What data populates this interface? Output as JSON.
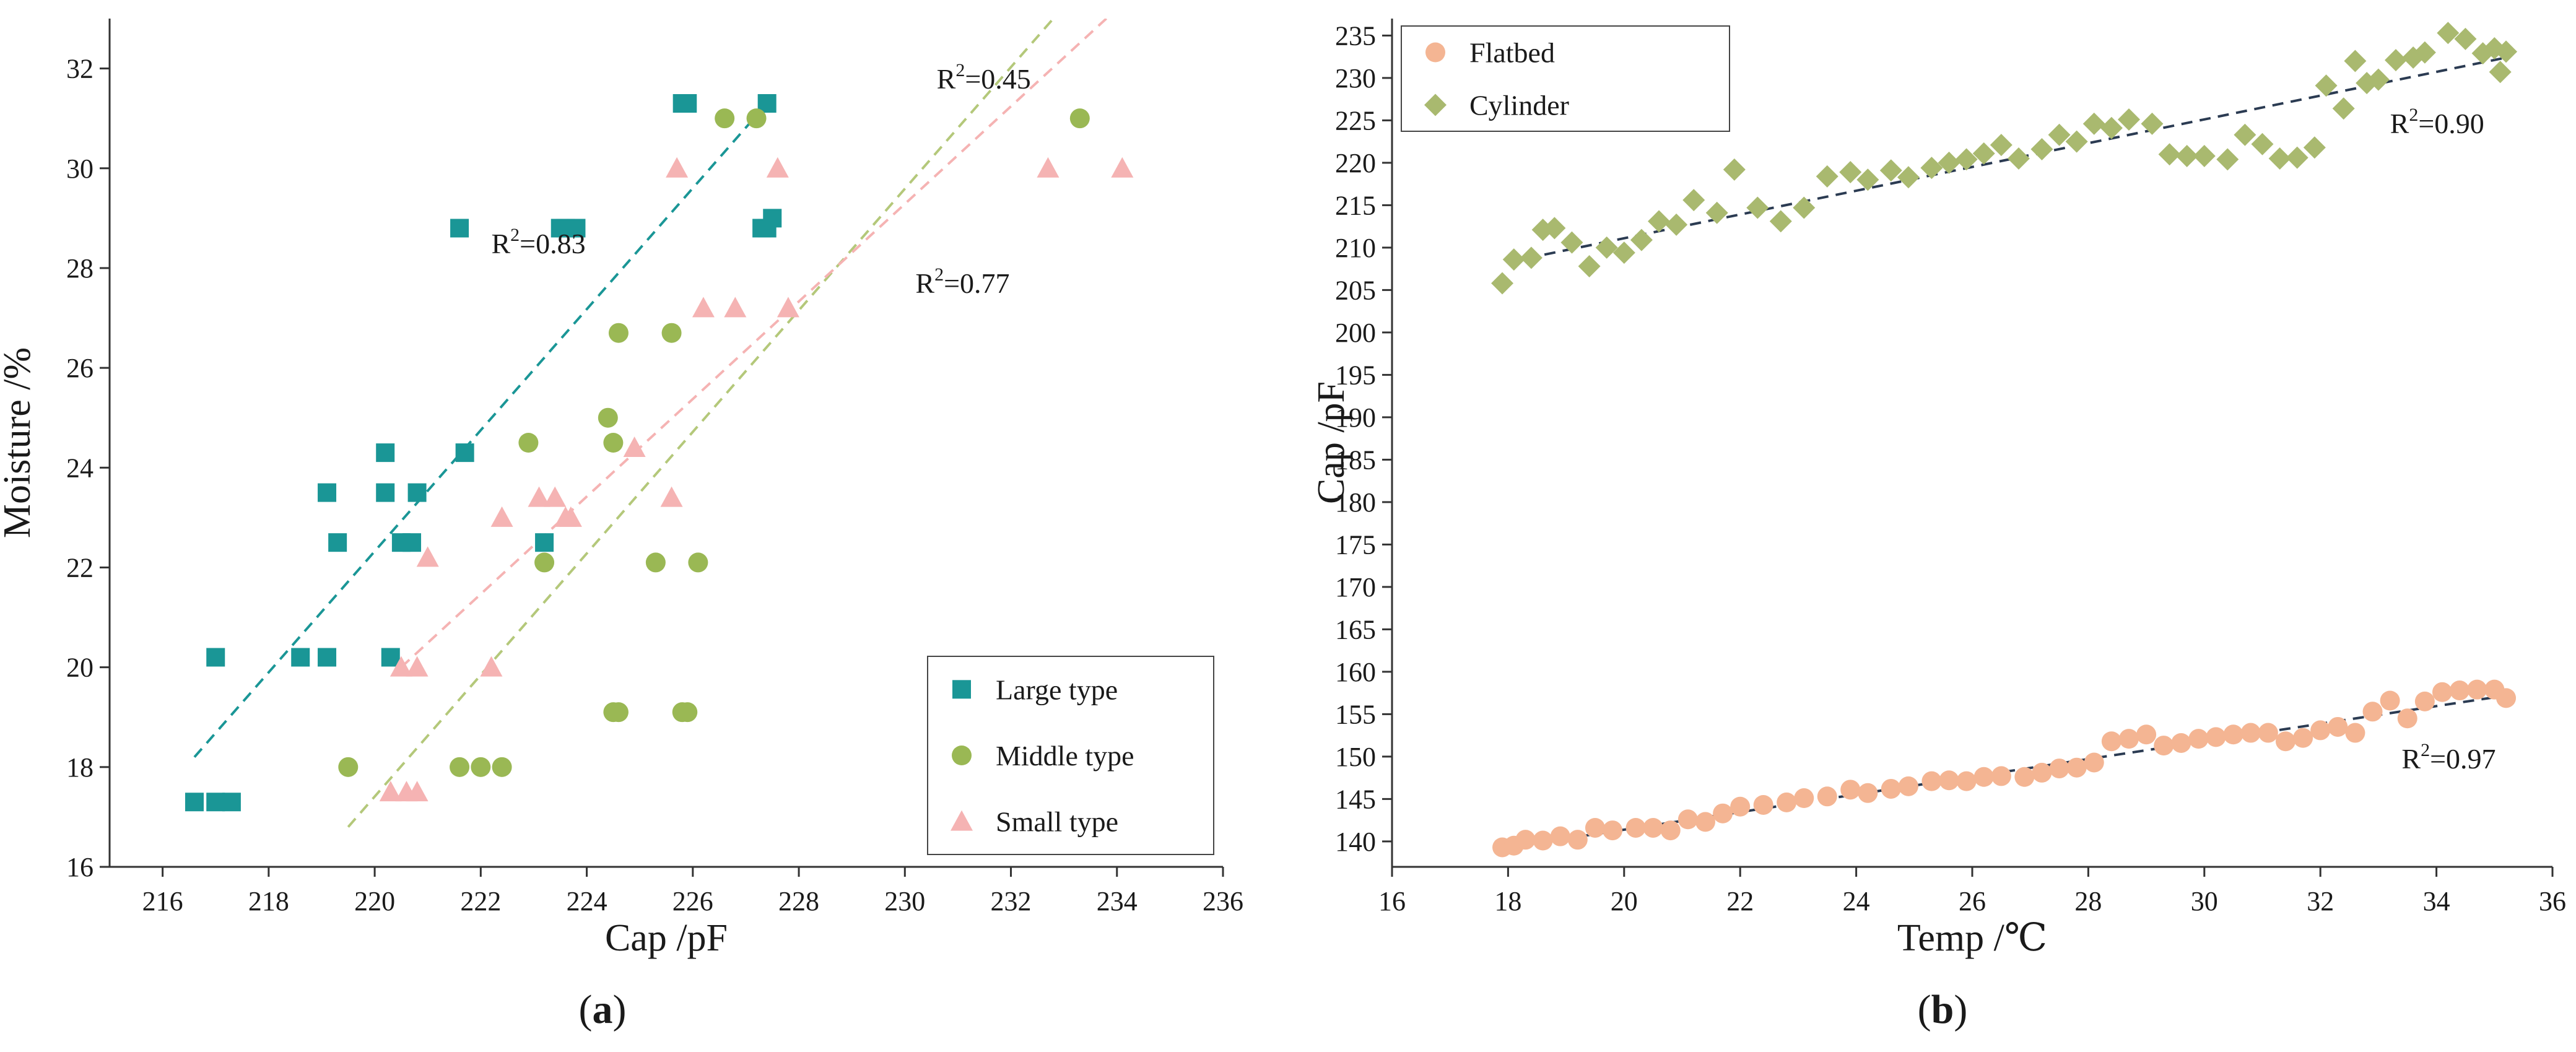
{
  "chart_data": [
    {
      "type": "scatter",
      "panel": "(a)",
      "xlabel": "Cap /pF",
      "ylabel": "Moisture /%",
      "xlim": [
        215,
        236
      ],
      "ylim": [
        16,
        33
      ],
      "xticks": [
        216,
        218,
        220,
        222,
        224,
        226,
        228,
        230,
        232,
        234,
        236
      ],
      "yticks": [
        16,
        18,
        20,
        22,
        24,
        26,
        28,
        30,
        32
      ],
      "legend_position": "bottom-right",
      "series": [
        {
          "name": "Large type",
          "marker": "square",
          "color": "#1a9696",
          "points": [
            [
              216.6,
              17.3
            ],
            [
              217.0,
              17.3
            ],
            [
              217.3,
              17.3
            ],
            [
              217.0,
              20.2
            ],
            [
              218.6,
              20.2
            ],
            [
              219.1,
              20.2
            ],
            [
              219.1,
              23.5
            ],
            [
              219.3,
              22.5
            ],
            [
              220.2,
              24.3
            ],
            [
              220.2,
              23.5
            ],
            [
              220.3,
              20.2
            ],
            [
              220.5,
              22.5
            ],
            [
              220.7,
              22.5
            ],
            [
              220.8,
              23.5
            ],
            [
              221.6,
              28.8
            ],
            [
              221.7,
              24.3
            ],
            [
              223.2,
              22.5
            ],
            [
              223.5,
              28.8
            ],
            [
              223.6,
              28.8
            ],
            [
              223.8,
              28.8
            ],
            [
              225.8,
              31.3
            ],
            [
              225.9,
              31.3
            ],
            [
              227.3,
              28.8
            ],
            [
              227.4,
              31.3
            ],
            [
              227.5,
              29.0
            ],
            [
              227.4,
              28.8
            ]
          ]
        },
        {
          "name": "Middle type",
          "marker": "circle",
          "color": "#9ab854",
          "points": [
            [
              219.5,
              18.0
            ],
            [
              221.6,
              18.0
            ],
            [
              222.0,
              18.0
            ],
            [
              222.4,
              18.0
            ],
            [
              222.9,
              24.5
            ],
            [
              223.2,
              22.1
            ],
            [
              224.4,
              25.0
            ],
            [
              224.5,
              24.5
            ],
            [
              224.5,
              19.1
            ],
            [
              224.6,
              19.1
            ],
            [
              224.6,
              26.7
            ],
            [
              225.3,
              22.1
            ],
            [
              225.6,
              26.7
            ],
            [
              225.8,
              19.1
            ],
            [
              225.9,
              19.1
            ],
            [
              226.1,
              22.1
            ],
            [
              226.6,
              31.0
            ],
            [
              227.2,
              31.0
            ],
            [
              233.3,
              31.0
            ]
          ]
        },
        {
          "name": "Small type",
          "marker": "triangle",
          "color": "#f5b3b3",
          "points": [
            [
              220.3,
              17.5
            ],
            [
              220.6,
              17.5
            ],
            [
              220.8,
              17.5
            ],
            [
              220.5,
              20.0
            ],
            [
              220.8,
              20.0
            ],
            [
              221.0,
              22.2
            ],
            [
              222.2,
              20.0
            ],
            [
              222.4,
              23.0
            ],
            [
              223.1,
              23.4
            ],
            [
              223.4,
              23.4
            ],
            [
              223.6,
              23.0
            ],
            [
              223.7,
              23.0
            ],
            [
              224.9,
              24.4
            ],
            [
              225.6,
              23.4
            ],
            [
              225.7,
              30.0
            ],
            [
              226.2,
              27.2
            ],
            [
              226.8,
              27.2
            ],
            [
              227.6,
              30.0
            ],
            [
              227.8,
              27.2
            ],
            [
              232.7,
              30.0
            ],
            [
              234.1,
              30.0
            ]
          ]
        }
      ],
      "fits": [
        {
          "series": "Large type",
          "label_base": "R",
          "label_sup": "2",
          "label_value": "=0.83",
          "x": [
            216.6,
            227.4
          ],
          "y": [
            18.2,
            31.3
          ],
          "color": "#1a9696"
        },
        {
          "series": "Middle type",
          "label_base": "R",
          "label_sup": "2",
          "label_value": "=0.45",
          "x": [
            219.5,
            232.8
          ],
          "y": [
            16.8,
            33.0
          ],
          "color": "#b4c87a"
        },
        {
          "series": "Small type",
          "label_base": "R",
          "label_sup": "2",
          "label_value": "=0.77",
          "x": [
            220.5,
            233.8
          ],
          "y": [
            20.0,
            33.0
          ],
          "color": "#f5b3b3"
        }
      ],
      "annotations": [
        {
          "text_base": "R",
          "text_sup": "2",
          "text_value": "=0.45",
          "at": [
            230.6,
            31.6
          ]
        },
        {
          "text_base": "R",
          "text_sup": "2",
          "text_value": "=0.83",
          "at": [
            222.2,
            28.3
          ]
        },
        {
          "text_base": "R",
          "text_sup": "2",
          "text_value": "=0.77",
          "at": [
            230.2,
            27.5
          ]
        }
      ]
    },
    {
      "type": "scatter",
      "panel": "(b)",
      "xlabel": "Temp /℃",
      "ylabel": "Cap /pF",
      "xlim": [
        16,
        36
      ],
      "ylim": [
        137,
        237
      ],
      "xticks": [
        16,
        18,
        20,
        22,
        24,
        26,
        28,
        30,
        32,
        34,
        36
      ],
      "yticks": [
        140,
        145,
        150,
        155,
        160,
        165,
        170,
        175,
        180,
        185,
        190,
        195,
        200,
        205,
        210,
        215,
        220,
        225,
        230,
        235
      ],
      "legend_position": "top-left",
      "series": [
        {
          "name": "Flatbed",
          "marker": "circle",
          "color": "#f4b593",
          "points": [
            [
              17.9,
              139.3
            ],
            [
              18.1,
              139.5
            ],
            [
              18.3,
              140.2
            ],
            [
              18.6,
              140.1
            ],
            [
              18.9,
              140.6
            ],
            [
              19.2,
              140.2
            ],
            [
              19.5,
              141.6
            ],
            [
              19.8,
              141.3
            ],
            [
              20.2,
              141.6
            ],
            [
              20.5,
              141.6
            ],
            [
              20.8,
              141.3
            ],
            [
              21.1,
              142.6
            ],
            [
              21.4,
              142.3
            ],
            [
              21.7,
              143.3
            ],
            [
              22.0,
              144.1
            ],
            [
              22.4,
              144.3
            ],
            [
              22.8,
              144.6
            ],
            [
              23.1,
              145.1
            ],
            [
              23.5,
              145.3
            ],
            [
              23.9,
              146.1
            ],
            [
              24.2,
              145.7
            ],
            [
              24.6,
              146.2
            ],
            [
              24.9,
              146.5
            ],
            [
              25.3,
              147.1
            ],
            [
              25.6,
              147.2
            ],
            [
              25.9,
              147.1
            ],
            [
              26.2,
              147.6
            ],
            [
              26.5,
              147.7
            ],
            [
              26.9,
              147.6
            ],
            [
              27.2,
              148.1
            ],
            [
              27.5,
              148.6
            ],
            [
              27.8,
              148.7
            ],
            [
              28.1,
              149.3
            ],
            [
              28.4,
              151.8
            ],
            [
              28.7,
              152.1
            ],
            [
              29.0,
              152.6
            ],
            [
              29.3,
              151.3
            ],
            [
              29.6,
              151.6
            ],
            [
              29.9,
              152.1
            ],
            [
              30.2,
              152.3
            ],
            [
              30.5,
              152.6
            ],
            [
              30.8,
              152.8
            ],
            [
              31.1,
              152.8
            ],
            [
              31.4,
              151.8
            ],
            [
              31.7,
              152.2
            ],
            [
              32.0,
              153.1
            ],
            [
              32.3,
              153.5
            ],
            [
              32.6,
              152.8
            ],
            [
              32.9,
              155.3
            ],
            [
              33.2,
              156.6
            ],
            [
              33.5,
              154.5
            ],
            [
              33.8,
              156.5
            ],
            [
              34.1,
              157.6
            ],
            [
              34.4,
              157.8
            ],
            [
              34.7,
              157.9
            ],
            [
              35.0,
              157.9
            ],
            [
              35.2,
              156.9
            ]
          ]
        },
        {
          "name": "Cylinder",
          "marker": "diamond",
          "color": "#a9b96f",
          "points": [
            [
              17.9,
              205.8
            ],
            [
              18.1,
              208.6
            ],
            [
              18.4,
              208.8
            ],
            [
              18.6,
              212.1
            ],
            [
              18.8,
              212.3
            ],
            [
              19.1,
              210.6
            ],
            [
              19.4,
              207.8
            ],
            [
              19.7,
              210.0
            ],
            [
              20.0,
              209.4
            ],
            [
              20.3,
              210.9
            ],
            [
              20.6,
              213.1
            ],
            [
              20.9,
              212.7
            ],
            [
              21.2,
              215.6
            ],
            [
              21.6,
              214.1
            ],
            [
              21.9,
              219.2
            ],
            [
              22.3,
              214.7
            ],
            [
              22.7,
              213.1
            ],
            [
              23.1,
              214.7
            ],
            [
              23.5,
              218.4
            ],
            [
              23.9,
              218.9
            ],
            [
              24.2,
              218.0
            ],
            [
              24.6,
              219.1
            ],
            [
              24.9,
              218.3
            ],
            [
              25.3,
              219.4
            ],
            [
              25.6,
              220.0
            ],
            [
              25.9,
              220.4
            ],
            [
              26.2,
              221.1
            ],
            [
              26.5,
              222.1
            ],
            [
              26.8,
              220.5
            ],
            [
              27.2,
              221.6
            ],
            [
              27.5,
              223.3
            ],
            [
              27.8,
              222.5
            ],
            [
              28.1,
              224.6
            ],
            [
              28.4,
              224.1
            ],
            [
              28.7,
              225.1
            ],
            [
              29.1,
              224.6
            ],
            [
              29.4,
              221.0
            ],
            [
              29.7,
              220.8
            ],
            [
              30.0,
              220.8
            ],
            [
              30.4,
              220.4
            ],
            [
              30.7,
              223.3
            ],
            [
              31.0,
              222.2
            ],
            [
              31.3,
              220.5
            ],
            [
              31.6,
              220.6
            ],
            [
              31.9,
              221.8
            ],
            [
              32.1,
              229.1
            ],
            [
              32.4,
              226.4
            ],
            [
              32.6,
              232.0
            ],
            [
              32.8,
              229.4
            ],
            [
              33.0,
              229.8
            ],
            [
              33.3,
              232.1
            ],
            [
              33.6,
              232.4
            ],
            [
              33.8,
              233.0
            ],
            [
              34.2,
              235.3
            ],
            [
              34.5,
              234.6
            ],
            [
              34.8,
              232.9
            ],
            [
              35.0,
              233.5
            ],
            [
              35.1,
              230.7
            ],
            [
              35.2,
              233.1
            ]
          ]
        }
      ],
      "fits": [
        {
          "series": "Flatbed",
          "label_base": "R",
          "label_sup": "2",
          "label_value": "=0.97",
          "x": [
            18.0,
            35.2
          ],
          "y": [
            139.3,
            157.2
          ],
          "color": "#2b3b52"
        },
        {
          "series": "Cylinder",
          "label_base": "R",
          "label_sup": "2",
          "label_value": "=0.90",
          "x": [
            18.0,
            35.2
          ],
          "y": [
            208.3,
            232.4
          ],
          "color": "#2b3b52"
        }
      ],
      "annotations": [
        {
          "text_base": "R",
          "text_sup": "2",
          "text_value": "=0.90",
          "at": [
            33.2,
            223.5
          ]
        },
        {
          "text_base": "R",
          "text_sup": "2",
          "text_value": "=0.97",
          "at": [
            33.4,
            148.6
          ]
        }
      ]
    }
  ],
  "captions": {
    "a": {
      "open": "(",
      "letter": "a",
      "close": ")"
    },
    "b": {
      "open": "(",
      "letter": "b",
      "close": ")"
    }
  }
}
